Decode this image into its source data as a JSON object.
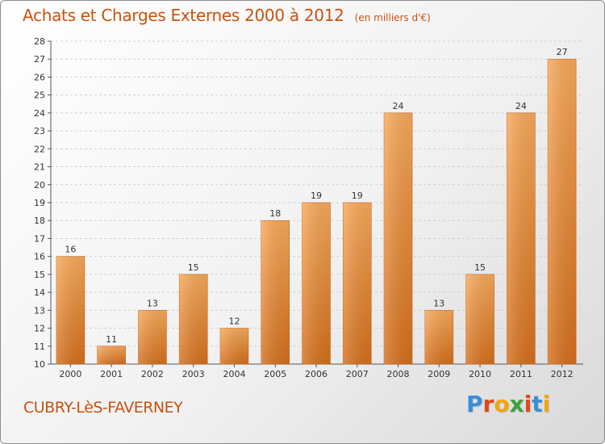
{
  "title": "Achats et Charges Externes 2000 à 2012",
  "unit_label": "(en milliers d'€)",
  "commune": "CUBRY-LèS-FAVERNEY",
  "logo": {
    "text": "Proxiti",
    "letter_colors": [
      "#3a8fd6",
      "#e0481e",
      "#f2a60c",
      "#3aa33a",
      "#e0481e",
      "#3a8fd6",
      "#f2a60c"
    ]
  },
  "colors": {
    "bar_light": "#f7a95a",
    "bar_dark": "#d46f1c",
    "title": "#c8520e",
    "grid": "#cfcfcf"
  },
  "chart_data": {
    "type": "bar",
    "title": "Achats et Charges Externes 2000 à 2012",
    "subtitle": "(en milliers d'€)",
    "xlabel": "",
    "ylabel": "",
    "categories": [
      "2000",
      "2001",
      "2002",
      "2003",
      "2004",
      "2005",
      "2006",
      "2007",
      "2008",
      "2009",
      "2010",
      "2011",
      "2012"
    ],
    "values": [
      16,
      11,
      13,
      15,
      12,
      18,
      19,
      19,
      24,
      13,
      15,
      24,
      27
    ],
    "ylim": [
      10,
      28
    ],
    "yticks": [
      10,
      11,
      12,
      13,
      14,
      15,
      16,
      17,
      18,
      19,
      20,
      21,
      22,
      23,
      24,
      25,
      26,
      27,
      28
    ],
    "grid": true,
    "data_labels": true
  }
}
